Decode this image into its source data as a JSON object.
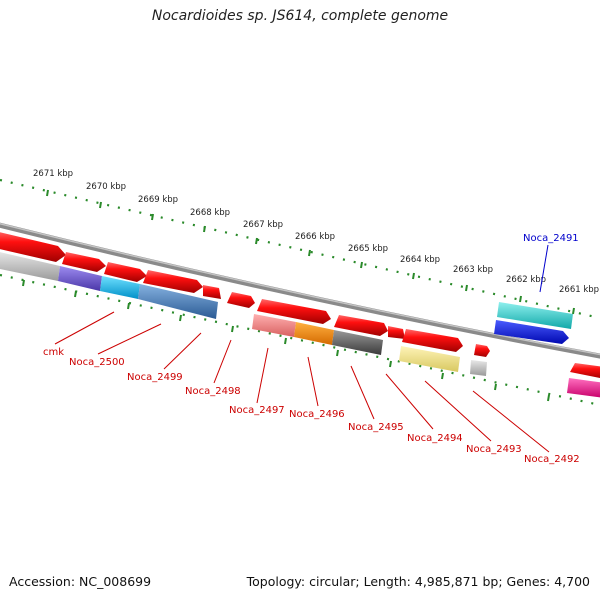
{
  "title": "Nocardioides sp. JS614, complete genome",
  "footer": {
    "accession": "Accession: NC_008699",
    "summary": "Topology: circular; Length: 4,985,871 bp; Genes: 4,700"
  },
  "scale": {
    "kbp_labels": [
      "2671 kbp",
      "2670 kbp",
      "2669 kbp",
      "2668 kbp",
      "2667 kbp",
      "2666 kbp",
      "2665 kbp",
      "2664 kbp",
      "2663 kbp",
      "2662 kbp",
      "2661 kbp"
    ]
  },
  "colors": {
    "backbone": "#8a8a8a",
    "tick": "#2a8a2a",
    "label_red": "#cc0000",
    "label_blue": "#0000cc"
  },
  "genes": [
    {
      "label": "cmk",
      "color": "#cc0000"
    },
    {
      "label": "Noca_2500",
      "color": "#cc0000"
    },
    {
      "label": "Noca_2499",
      "color": "#cc0000"
    },
    {
      "label": "Noca_2498",
      "color": "#cc0000"
    },
    {
      "label": "Noca_2497",
      "color": "#cc0000"
    },
    {
      "label": "Noca_2496",
      "color": "#cc0000"
    },
    {
      "label": "Noca_2495",
      "color": "#cc0000"
    },
    {
      "label": "Noca_2494",
      "color": "#cc0000"
    },
    {
      "label": "Noca_2493",
      "color": "#cc0000"
    },
    {
      "label": "Noca_2492",
      "color": "#cc0000"
    },
    {
      "label": "Noca_2491",
      "color": "#0000cc"
    }
  ]
}
